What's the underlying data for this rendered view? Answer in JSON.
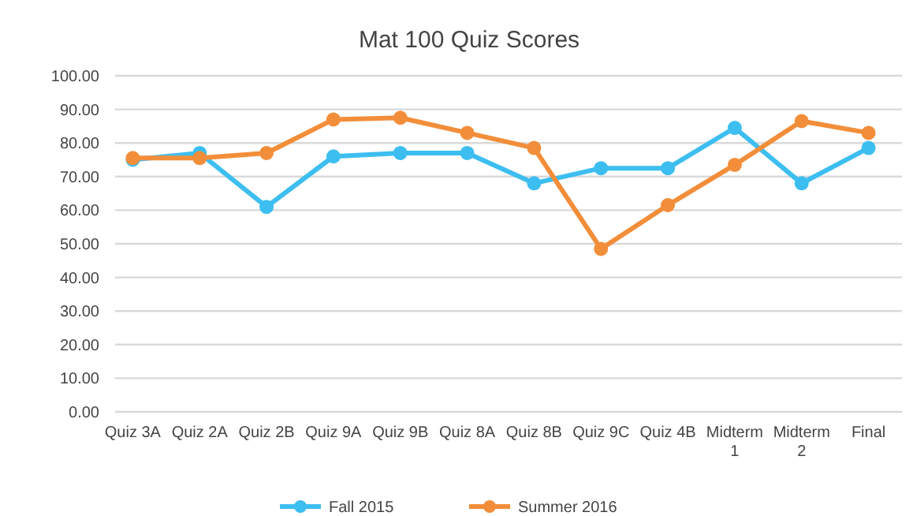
{
  "chart_data": {
    "type": "line",
    "title": "Mat 100 Quiz Scores",
    "categories": [
      "Quiz 3A",
      "Quiz 2A",
      "Quiz 2B",
      "Quiz 9A",
      "Quiz 9B",
      "Quiz 8A",
      "Quiz 8B",
      "Quiz 9C",
      "Quiz 4B",
      "Midterm 1",
      "Midterm 2",
      "Final"
    ],
    "series": [
      {
        "name": "Fall 2015",
        "color": "#3dbef0",
        "values": [
          75,
          77,
          61,
          76,
          77,
          77,
          68,
          72.5,
          72.5,
          84.5,
          68,
          78.5
        ]
      },
      {
        "name": "Summer 2016",
        "color": "#f28e3a",
        "values": [
          75.5,
          75.5,
          77,
          87,
          87.5,
          83,
          78.5,
          48.5,
          61.5,
          73.5,
          86.5,
          83
        ]
      }
    ],
    "ylim": [
      0,
      100
    ],
    "yticks": [
      {
        "value": 0,
        "label": "0.00"
      },
      {
        "value": 10,
        "label": "10.00"
      },
      {
        "value": 20,
        "label": "20.00"
      },
      {
        "value": 30,
        "label": "30.00"
      },
      {
        "value": 40,
        "label": "40.00"
      },
      {
        "value": 50,
        "label": "50.00"
      },
      {
        "value": 60,
        "label": "60.00"
      },
      {
        "value": 70,
        "label": "70.00"
      },
      {
        "value": 80,
        "label": "80.00"
      },
      {
        "value": 90,
        "label": "90.00"
      },
      {
        "value": 100,
        "label": "100.00"
      }
    ],
    "grid": "y",
    "legend": "bottom",
    "marker": "circle",
    "line_style": "solid"
  }
}
